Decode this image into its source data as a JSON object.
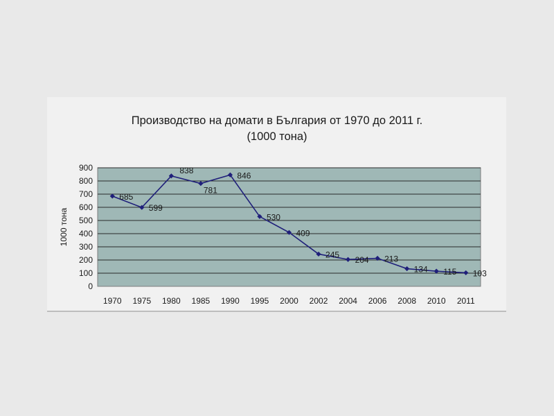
{
  "chart_data": {
    "type": "line",
    "title": "Производство на домати в България от 1970 до 2011 г.",
    "subtitle": "(1000 тона)",
    "ylabel": "1000 тона",
    "xlabel": "",
    "ylim": [
      0,
      900
    ],
    "yticks": [
      0,
      100,
      200,
      300,
      400,
      500,
      600,
      700,
      800,
      900
    ],
    "grid": true,
    "legend": "none",
    "categories": [
      "1970",
      "1975",
      "1980",
      "1985",
      "1990",
      "1995",
      "2000",
      "2002",
      "2004",
      "2006",
      "2008",
      "2010",
      "2011"
    ],
    "series": [
      {
        "values": [
          685,
          599,
          838,
          781,
          846,
          530,
          409,
          245,
          204,
          213,
          134,
          115,
          103
        ],
        "labels": [
          "685",
          "599",
          "838",
          "781",
          "846",
          "530",
          "409",
          "245",
          "204",
          "213",
          "134",
          "115",
          "103"
        ],
        "color": "#1f1f7a"
      }
    ],
    "plot_background": "#9fb8b6",
    "grid_color": "#2a2a2a"
  }
}
